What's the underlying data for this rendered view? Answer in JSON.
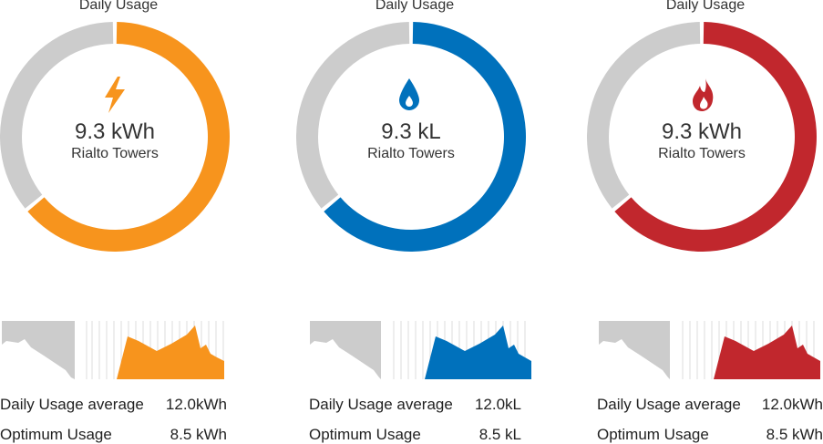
{
  "panels": [
    {
      "title": "Daily Usage",
      "icon": "lightning-icon",
      "value": "9.3 kWh",
      "building": "Rialto Towers",
      "usage_fraction": 0.64,
      "color": "#F7941D",
      "stats": [
        {
          "label": "Daily Usage average",
          "value": "12.0kWh"
        },
        {
          "label": "Optimum Usage",
          "value": "8.5 kWh"
        }
      ]
    },
    {
      "title": "Daily Usage",
      "icon": "water-drop-icon",
      "value": "9.3 kL",
      "building": "Rialto Towers",
      "usage_fraction": 0.64,
      "color": "#0071BC",
      "stats": [
        {
          "label": "Daily Usage average",
          "value": "12.0kL"
        },
        {
          "label": "Optimum Usage",
          "value": "8.5 kL"
        }
      ]
    },
    {
      "title": "Daily Usage",
      "icon": "flame-icon",
      "value": "9.3 kWh",
      "building": "Rialto Towers",
      "usage_fraction": 0.64,
      "color": "#C1272D",
      "stats": [
        {
          "label": "Daily Usage average",
          "value": "12.0kWh"
        },
        {
          "label": "Optimum Usage",
          "value": "8.5 kWh"
        }
      ]
    }
  ],
  "track_color": "#CCCCCC"
}
